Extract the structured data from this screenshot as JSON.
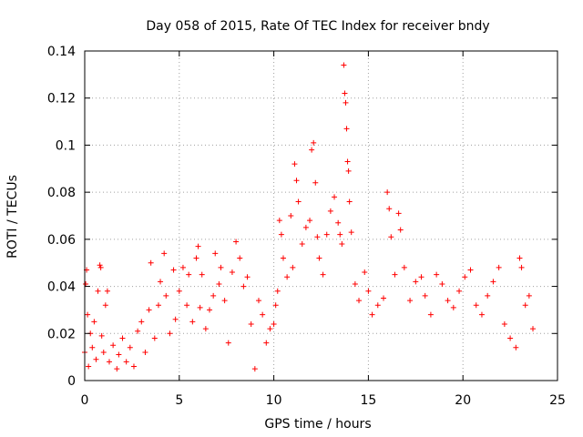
{
  "chart_data": {
    "type": "scatter",
    "title": "Day 058 of 2015, Rate Of TEC Index for receiver bndy",
    "xlabel": "GPS time / hours",
    "ylabel": "ROTI / TECUs",
    "xlim": [
      0,
      25
    ],
    "ylim": [
      0,
      0.14
    ],
    "xticks": [
      0,
      5,
      10,
      15,
      20,
      25
    ],
    "xtick_labels": [
      "0",
      "5",
      "10",
      "15",
      "20",
      "25"
    ],
    "yticks": [
      0,
      0.02,
      0.04,
      0.06,
      0.08,
      0.1,
      0.12,
      0.14
    ],
    "ytick_labels": [
      "0",
      "0.02",
      "0.04",
      "0.06",
      "0.08",
      "0.1",
      "0.12",
      "0.14"
    ],
    "grid": true,
    "marker": "+",
    "color": "#ff0000",
    "series": [
      {
        "name": "ROTI",
        "points": [
          [
            0.0,
            0.012
          ],
          [
            0.05,
            0.041
          ],
          [
            0.1,
            0.047
          ],
          [
            0.15,
            0.028
          ],
          [
            0.2,
            0.006
          ],
          [
            0.3,
            0.02
          ],
          [
            0.4,
            0.014
          ],
          [
            0.5,
            0.025
          ],
          [
            0.6,
            0.009
          ],
          [
            0.7,
            0.038
          ],
          [
            0.8,
            0.049
          ],
          [
            0.85,
            0.048
          ],
          [
            0.9,
            0.019
          ],
          [
            1.0,
            0.012
          ],
          [
            1.1,
            0.032
          ],
          [
            1.2,
            0.038
          ],
          [
            1.3,
            0.008
          ],
          [
            1.5,
            0.015
          ],
          [
            1.7,
            0.005
          ],
          [
            1.8,
            0.011
          ],
          [
            2.0,
            0.018
          ],
          [
            2.2,
            0.008
          ],
          [
            2.4,
            0.014
          ],
          [
            2.6,
            0.006
          ],
          [
            2.8,
            0.021
          ],
          [
            3.0,
            0.025
          ],
          [
            3.2,
            0.012
          ],
          [
            3.4,
            0.03
          ],
          [
            3.5,
            0.05
          ],
          [
            3.7,
            0.018
          ],
          [
            3.9,
            0.032
          ],
          [
            4.0,
            0.042
          ],
          [
            4.2,
            0.054
          ],
          [
            4.3,
            0.036
          ],
          [
            4.5,
            0.02
          ],
          [
            4.7,
            0.047
          ],
          [
            4.8,
            0.026
          ],
          [
            5.0,
            0.038
          ],
          [
            5.2,
            0.048
          ],
          [
            5.4,
            0.032
          ],
          [
            5.5,
            0.045
          ],
          [
            5.7,
            0.025
          ],
          [
            5.9,
            0.052
          ],
          [
            6.0,
            0.057
          ],
          [
            6.1,
            0.031
          ],
          [
            6.2,
            0.045
          ],
          [
            6.4,
            0.022
          ],
          [
            6.6,
            0.03
          ],
          [
            6.8,
            0.036
          ],
          [
            6.9,
            0.054
          ],
          [
            7.1,
            0.041
          ],
          [
            7.2,
            0.048
          ],
          [
            7.4,
            0.034
          ],
          [
            7.6,
            0.016
          ],
          [
            7.8,
            0.046
          ],
          [
            8.0,
            0.059
          ],
          [
            8.2,
            0.052
          ],
          [
            8.4,
            0.04
          ],
          [
            8.6,
            0.044
          ],
          [
            8.8,
            0.024
          ],
          [
            9.0,
            0.005
          ],
          [
            9.2,
            0.034
          ],
          [
            9.4,
            0.028
          ],
          [
            9.6,
            0.016
          ],
          [
            9.8,
            0.022
          ],
          [
            10.0,
            0.024
          ],
          [
            10.1,
            0.032
          ],
          [
            10.2,
            0.038
          ],
          [
            10.3,
            0.068
          ],
          [
            10.4,
            0.062
          ],
          [
            10.5,
            0.052
          ],
          [
            10.7,
            0.044
          ],
          [
            10.9,
            0.07
          ],
          [
            11.0,
            0.048
          ],
          [
            11.1,
            0.092
          ],
          [
            11.2,
            0.085
          ],
          [
            11.3,
            0.076
          ],
          [
            11.5,
            0.058
          ],
          [
            11.7,
            0.065
          ],
          [
            11.9,
            0.068
          ],
          [
            12.0,
            0.098
          ],
          [
            12.1,
            0.101
          ],
          [
            12.2,
            0.084
          ],
          [
            12.3,
            0.061
          ],
          [
            12.4,
            0.052
          ],
          [
            12.6,
            0.045
          ],
          [
            12.8,
            0.062
          ],
          [
            13.0,
            0.072
          ],
          [
            13.2,
            0.078
          ],
          [
            13.4,
            0.067
          ],
          [
            13.5,
            0.062
          ],
          [
            13.6,
            0.058
          ],
          [
            13.7,
            0.134
          ],
          [
            13.75,
            0.122
          ],
          [
            13.8,
            0.118
          ],
          [
            13.85,
            0.107
          ],
          [
            13.9,
            0.093
          ],
          [
            13.95,
            0.089
          ],
          [
            14.0,
            0.076
          ],
          [
            14.1,
            0.063
          ],
          [
            14.3,
            0.041
          ],
          [
            14.5,
            0.034
          ],
          [
            14.8,
            0.046
          ],
          [
            15.0,
            0.038
          ],
          [
            15.2,
            0.028
          ],
          [
            15.5,
            0.032
          ],
          [
            15.8,
            0.035
          ],
          [
            16.0,
            0.08
          ],
          [
            16.1,
            0.073
          ],
          [
            16.2,
            0.061
          ],
          [
            16.4,
            0.045
          ],
          [
            16.6,
            0.071
          ],
          [
            16.7,
            0.064
          ],
          [
            16.9,
            0.048
          ],
          [
            17.2,
            0.034
          ],
          [
            17.5,
            0.042
          ],
          [
            17.8,
            0.044
          ],
          [
            18.0,
            0.036
          ],
          [
            18.3,
            0.028
          ],
          [
            18.6,
            0.045
          ],
          [
            18.9,
            0.041
          ],
          [
            19.2,
            0.034
          ],
          [
            19.5,
            0.031
          ],
          [
            19.8,
            0.038
          ],
          [
            20.1,
            0.044
          ],
          [
            20.4,
            0.047
          ],
          [
            20.7,
            0.032
          ],
          [
            21.0,
            0.028
          ],
          [
            21.3,
            0.036
          ],
          [
            21.6,
            0.042
          ],
          [
            21.9,
            0.048
          ],
          [
            22.2,
            0.024
          ],
          [
            22.5,
            0.018
          ],
          [
            22.8,
            0.014
          ],
          [
            23.0,
            0.052
          ],
          [
            23.1,
            0.048
          ],
          [
            23.3,
            0.032
          ],
          [
            23.5,
            0.036
          ],
          [
            23.7,
            0.022
          ]
        ]
      }
    ]
  }
}
